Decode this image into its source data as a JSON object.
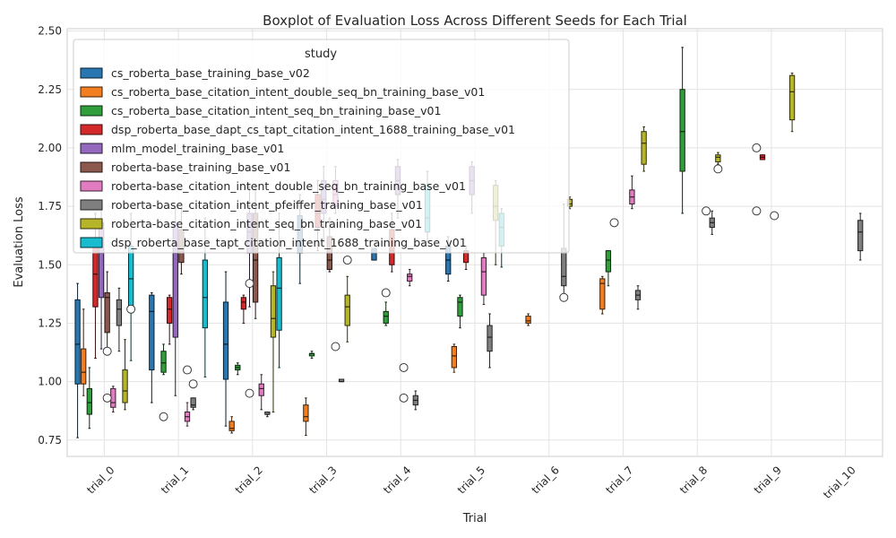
{
  "chart_data": {
    "type": "boxplot",
    "title": "Boxplot of Evaluation Loss Across Different Seeds for Each Trial",
    "xlabel": "Trial",
    "ylabel": "Evaluation Loss",
    "ylim": [
      0.68,
      2.51
    ],
    "yticks": [
      0.75,
      1.0,
      1.25,
      1.5,
      1.75,
      2.0,
      2.25,
      2.5
    ],
    "grid": true,
    "legend_title": "study",
    "legend_position": "top-left",
    "categories": [
      "trial_0",
      "trial_1",
      "trial_2",
      "trial_3",
      "trial_4",
      "trial_5",
      "trial_6",
      "trial_7",
      "trial_8",
      "trial_9",
      "trial_10"
    ],
    "series": [
      {
        "name": "cs_roberta_base_training_base_v02",
        "color": "#2976b1",
        "boxes": [
          {
            "trial": 0,
            "low": 0.76,
            "q1": 0.99,
            "med": 1.16,
            "q3": 1.35,
            "high": 1.42,
            "out": []
          },
          {
            "trial": 1,
            "low": 0.91,
            "q1": 1.05,
            "med": 1.3,
            "q3": 1.37,
            "high": 1.38,
            "out": []
          },
          {
            "trial": 2,
            "low": 0.81,
            "q1": 1.01,
            "med": 1.16,
            "q3": 1.34,
            "high": 1.47,
            "out": []
          },
          {
            "trial": 3,
            "low": 1.42,
            "q1": 1.55,
            "med": 1.58,
            "q3": 1.71,
            "high": 1.8,
            "out": []
          },
          {
            "trial": 4,
            "low": 1.52,
            "q1": 1.52,
            "med": 1.55,
            "q3": 1.57,
            "high": 1.57,
            "out": []
          },
          {
            "trial": 5,
            "low": 1.43,
            "q1": 1.46,
            "med": 1.52,
            "q3": 1.58,
            "high": 1.62,
            "out": []
          }
        ]
      },
      {
        "name": "cs_roberta_base_citation_intent_double_seq_bn_training_base_v01",
        "color": "#f17f21",
        "boxes": [
          {
            "trial": 0,
            "low": 0.94,
            "q1": 0.99,
            "med": 1.04,
            "q3": 1.14,
            "high": 1.31,
            "out": []
          },
          {
            "trial": 2,
            "low": 0.78,
            "q1": 0.79,
            "med": 0.8,
            "q3": 0.83,
            "high": 0.85,
            "out": []
          },
          {
            "trial": 3,
            "low": 0.77,
            "q1": 0.83,
            "med": 0.85,
            "q3": 0.9,
            "high": 0.93,
            "out": []
          },
          {
            "trial": 5,
            "low": 1.04,
            "q1": 1.06,
            "med": 1.11,
            "q3": 1.15,
            "high": 1.16,
            "out": []
          },
          {
            "trial": 6,
            "low": 1.24,
            "q1": 1.25,
            "med": 1.26,
            "q3": 1.28,
            "high": 1.29,
            "out": []
          },
          {
            "trial": 7,
            "low": 1.29,
            "q1": 1.31,
            "med": 1.42,
            "q3": 1.44,
            "high": 1.45,
            "out": []
          }
        ]
      },
      {
        "name": "cs_roberta_base_citation_intent_seq_bn_training_base_v01",
        "color": "#2f9e3b",
        "boxes": [
          {
            "trial": 0,
            "low": 0.8,
            "q1": 0.86,
            "med": 0.91,
            "q3": 0.97,
            "high": 1.06,
            "out": []
          },
          {
            "trial": 1,
            "low": 1.03,
            "q1": 1.04,
            "med": 1.08,
            "q3": 1.13,
            "high": 1.16,
            "out": []
          },
          {
            "trial": 2,
            "low": 1.03,
            "q1": 1.05,
            "med": 1.06,
            "q3": 1.07,
            "high": 1.08,
            "out": []
          },
          {
            "trial": 3,
            "low": 1.1,
            "q1": 1.11,
            "med": 1.12,
            "q3": 1.12,
            "high": 1.13,
            "out": []
          },
          {
            "trial": 4,
            "low": 1.24,
            "q1": 1.25,
            "med": 1.28,
            "q3": 1.3,
            "high": 1.34,
            "out": []
          },
          {
            "trial": 5,
            "low": 1.23,
            "q1": 1.28,
            "med": 1.34,
            "q3": 1.36,
            "high": 1.37,
            "out": []
          },
          {
            "trial": 7,
            "low": 1.41,
            "q1": 1.47,
            "med": 1.52,
            "q3": 1.56,
            "high": 1.56,
            "out": []
          },
          {
            "trial": 8,
            "low": 1.72,
            "q1": 1.9,
            "med": 2.07,
            "q3": 2.25,
            "high": 2.43,
            "out": []
          }
        ]
      },
      {
        "name": "dsp_roberta_base_dapt_cs_tapt_citation_intent_1688_training_base_v01",
        "color": "#d3292a",
        "boxes": [
          {
            "trial": 0,
            "low": 1.1,
            "q1": 1.32,
            "med": 1.46,
            "q3": 1.6,
            "high": 1.72,
            "out": []
          },
          {
            "trial": 1,
            "low": 1.16,
            "q1": 1.25,
            "med": 1.31,
            "q3": 1.36,
            "high": 1.37,
            "out": []
          },
          {
            "trial": 2,
            "low": 1.25,
            "q1": 1.31,
            "med": 1.34,
            "q3": 1.36,
            "high": 1.37,
            "out": []
          },
          {
            "trial": 3,
            "low": 1.56,
            "q1": 1.66,
            "med": 1.72,
            "q3": 1.8,
            "high": 1.86,
            "out": []
          },
          {
            "trial": 4,
            "low": 1.47,
            "q1": 1.5,
            "med": 1.56,
            "q3": 1.65,
            "high": 1.72,
            "out": []
          },
          {
            "trial": 5,
            "low": 1.48,
            "q1": 1.51,
            "med": 1.55,
            "q3": 1.56,
            "high": 1.58,
            "out": []
          },
          {
            "trial": 9,
            "low": 1.95,
            "q1": 1.95,
            "med": 1.96,
            "q3": 1.97,
            "high": 1.97,
            "out": []
          }
        ]
      },
      {
        "name": "mlm_model_training_base_v01",
        "color": "#9469bd",
        "boxes": [
          {
            "trial": 0,
            "low": 1.14,
            "q1": 1.36,
            "med": 1.55,
            "q3": 1.68,
            "high": 1.74,
            "out": []
          },
          {
            "trial": 1,
            "low": 0.94,
            "q1": 1.19,
            "med": 1.55,
            "q3": 1.68,
            "high": 1.74,
            "out": []
          },
          {
            "trial": 2,
            "low": 1.32,
            "q1": 1.55,
            "med": 1.64,
            "q3": 1.72,
            "high": 1.84,
            "out": []
          },
          {
            "trial": 3,
            "low": 1.6,
            "q1": 1.72,
            "med": 1.78,
            "q3": 1.86,
            "high": 1.92,
            "out": []
          },
          {
            "trial": 4,
            "low": 1.7,
            "q1": 1.8,
            "med": 1.86,
            "q3": 1.92,
            "high": 1.95,
            "out": []
          },
          {
            "trial": 5,
            "low": 1.72,
            "q1": 1.8,
            "med": 1.86,
            "q3": 1.92,
            "high": 1.94,
            "out": []
          }
        ]
      },
      {
        "name": "roberta-base_training_base_v01",
        "color": "#8c574c",
        "boxes": [
          {
            "trial": 0,
            "low": 1.12,
            "q1": 1.21,
            "med": 1.36,
            "q3": 1.38,
            "high": 1.47,
            "out": []
          },
          {
            "trial": 1,
            "low": 1.46,
            "q1": 1.51,
            "med": 1.57,
            "q3": 1.65,
            "high": 1.74,
            "out": []
          },
          {
            "trial": 2,
            "low": 1.27,
            "q1": 1.34,
            "med": 1.52,
            "q3": 1.72,
            "high": 1.84,
            "out": []
          },
          {
            "trial": 3,
            "low": 1.47,
            "q1": 1.48,
            "med": 1.52,
            "q3": 1.62,
            "high": 1.7,
            "out": []
          }
        ]
      },
      {
        "name": "roberta-base_citation_intent_double_seq_bn_training_base_v01",
        "color": "#e17cc1",
        "boxes": [
          {
            "trial": 0,
            "low": 0.87,
            "q1": 0.89,
            "med": 0.91,
            "q3": 0.97,
            "high": 0.98,
            "out": []
          },
          {
            "trial": 1,
            "low": 0.81,
            "q1": 0.83,
            "med": 0.85,
            "q3": 0.87,
            "high": 0.91,
            "out": []
          },
          {
            "trial": 2,
            "low": 0.88,
            "q1": 0.94,
            "med": 0.97,
            "q3": 0.99,
            "high": 1.03,
            "out": []
          },
          {
            "trial": 3,
            "low": 1.72,
            "q1": 1.75,
            "med": 1.8,
            "q3": 1.86,
            "high": 1.92,
            "out": []
          },
          {
            "trial": 4,
            "low": 1.41,
            "q1": 1.43,
            "med": 1.45,
            "q3": 1.46,
            "high": 1.48,
            "out": []
          },
          {
            "trial": 5,
            "low": 1.33,
            "q1": 1.37,
            "med": 1.47,
            "q3": 1.53,
            "high": 1.55,
            "out": []
          },
          {
            "trial": 7,
            "low": 1.74,
            "q1": 1.76,
            "med": 1.79,
            "q3": 1.82,
            "high": 1.88,
            "out": []
          }
        ]
      },
      {
        "name": "roberta-base_citation_intent_pfeiffer_training_base_v01",
        "color": "#7f7f7f",
        "boxes": [
          {
            "trial": 0,
            "low": 1.13,
            "q1": 1.24,
            "med": 1.31,
            "q3": 1.35,
            "high": 1.4,
            "out": []
          },
          {
            "trial": 1,
            "low": 0.88,
            "q1": 0.89,
            "med": 0.9,
            "q3": 0.93,
            "high": 0.93,
            "out": []
          },
          {
            "trial": 2,
            "low": 0.85,
            "q1": 0.86,
            "med": 0.86,
            "q3": 0.87,
            "high": 0.87,
            "out": []
          },
          {
            "trial": 3,
            "low": 1.0,
            "q1": 1.0,
            "med": 1.0,
            "q3": 1.01,
            "high": 1.01,
            "out": []
          },
          {
            "trial": 4,
            "low": 0.88,
            "q1": 0.9,
            "med": 0.92,
            "q3": 0.94,
            "high": 0.96,
            "out": []
          },
          {
            "trial": 5,
            "low": 1.06,
            "q1": 1.13,
            "med": 1.19,
            "q3": 1.24,
            "high": 1.29,
            "out": []
          },
          {
            "trial": 6,
            "low": 1.36,
            "q1": 1.41,
            "med": 1.45,
            "q3": 1.57,
            "high": 1.76,
            "out": [
              1.36
            ]
          },
          {
            "trial": 7,
            "low": 1.31,
            "q1": 1.35,
            "med": 1.37,
            "q3": 1.39,
            "high": 1.41,
            "out": []
          },
          {
            "trial": 8,
            "low": 1.63,
            "q1": 1.66,
            "med": 1.68,
            "q3": 1.7,
            "high": 1.73,
            "out": []
          },
          {
            "trial": 10,
            "low": 1.52,
            "q1": 1.56,
            "med": 1.64,
            "q3": 1.69,
            "high": 1.72,
            "out": []
          }
        ]
      },
      {
        "name": "roberta-base_citation_intent_seq_bn_training_base_v01",
        "color": "#b6b529",
        "boxes": [
          {
            "trial": 0,
            "low": 0.88,
            "q1": 0.91,
            "med": 0.96,
            "q3": 1.05,
            "high": 1.18,
            "out": []
          },
          {
            "trial": 2,
            "low": 0.87,
            "q1": 1.19,
            "med": 1.27,
            "q3": 1.41,
            "high": 1.47,
            "out": []
          },
          {
            "trial": 3,
            "low": 1.17,
            "q1": 1.24,
            "med": 1.32,
            "q3": 1.37,
            "high": 1.45,
            "out": []
          },
          {
            "trial": 5,
            "low": 1.5,
            "q1": 1.69,
            "med": 1.75,
            "q3": 1.84,
            "high": 1.86,
            "out": []
          },
          {
            "trial": 6,
            "low": 1.74,
            "q1": 1.75,
            "med": 1.76,
            "q3": 1.78,
            "high": 1.79,
            "out": []
          },
          {
            "trial": 7,
            "low": 1.9,
            "q1": 1.93,
            "med": 2.02,
            "q3": 2.07,
            "high": 2.09,
            "out": []
          },
          {
            "trial": 8,
            "low": 1.93,
            "q1": 1.94,
            "med": 1.96,
            "q3": 1.97,
            "high": 1.98,
            "out": []
          },
          {
            "trial": 9,
            "low": 2.07,
            "q1": 2.12,
            "med": 2.24,
            "q3": 2.31,
            "high": 2.32,
            "out": []
          }
        ]
      },
      {
        "name": "dsp_roberta_base_tapt_citation_intent_1688_training_base_v01",
        "color": "#17bcce",
        "boxes": [
          {
            "trial": 0,
            "low": 1.09,
            "q1": 1.31,
            "med": 1.44,
            "q3": 1.58,
            "high": 1.72,
            "out": []
          },
          {
            "trial": 1,
            "low": 1.02,
            "q1": 1.23,
            "med": 1.36,
            "q3": 1.52,
            "high": 1.7,
            "out": []
          },
          {
            "trial": 2,
            "low": 1.06,
            "q1": 1.22,
            "med": 1.4,
            "q3": 1.53,
            "high": 1.72,
            "out": []
          },
          {
            "trial": 4,
            "low": 1.6,
            "q1": 1.64,
            "med": 1.7,
            "q3": 1.84,
            "high": 1.9,
            "out": []
          },
          {
            "trial": 5,
            "low": 1.49,
            "q1": 1.58,
            "med": 1.66,
            "q3": 1.72,
            "high": 1.74,
            "out": []
          }
        ]
      }
    ],
    "free_points": [
      {
        "trial": 0,
        "series": 5,
        "y": 1.13
      },
      {
        "trial": 0,
        "series": 5,
        "y": 0.93
      },
      {
        "trial": 0,
        "series": 9,
        "y": 1.31
      },
      {
        "trial": 1,
        "series": 7,
        "y": 0.99
      },
      {
        "trial": 1,
        "series": 6,
        "y": 1.05
      },
      {
        "trial": 1,
        "series": 2,
        "y": 0.85
      },
      {
        "trial": 2,
        "series": 4,
        "y": 1.42
      },
      {
        "trial": 2,
        "series": 4,
        "y": 0.95
      },
      {
        "trial": 3,
        "series": 6,
        "y": 1.15
      },
      {
        "trial": 3,
        "series": 8,
        "y": 1.52
      },
      {
        "trial": 4,
        "series": 2,
        "y": 1.38
      },
      {
        "trial": 4,
        "series": 5,
        "y": 1.06
      },
      {
        "trial": 4,
        "series": 5,
        "y": 0.93
      },
      {
        "trial": 7,
        "series": 3,
        "y": 1.68
      },
      {
        "trial": 8,
        "series": 6,
        "y": 1.73
      },
      {
        "trial": 8,
        "series": 8,
        "y": 1.91
      },
      {
        "trial": 9,
        "series": 2,
        "y": 2.0
      },
      {
        "trial": 9,
        "series": 2,
        "y": 1.73
      },
      {
        "trial": 9,
        "series": 5,
        "y": 1.71
      }
    ]
  }
}
